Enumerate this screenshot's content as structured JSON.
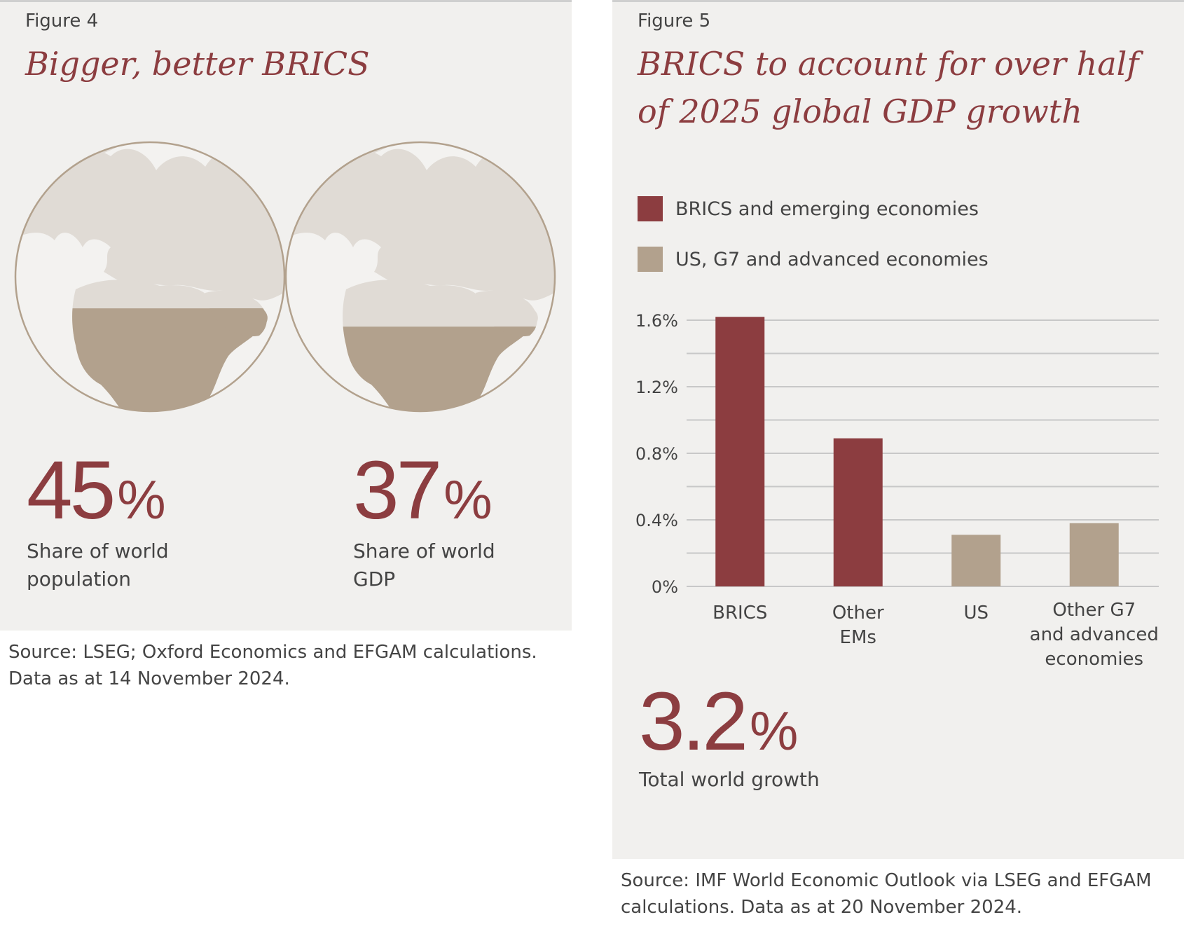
{
  "figure4": {
    "label": "Figure 4",
    "title": "Bigger, better BRICS",
    "stats": [
      {
        "value": "45",
        "unit": "%",
        "label_line1": "Share of world",
        "label_line2": "population",
        "share": 0.45
      },
      {
        "value": "37",
        "unit": "%",
        "label_line1": "Share of world",
        "label_line2": "GDP",
        "share": 0.37
      }
    ],
    "source_line1": "Source: LSEG; Oxford Economics and EFGAM calculations.",
    "source_line2": "Data as at 14 November 2024.",
    "colors": {
      "land_light": "#e0dbd5",
      "land_dark": "#b2a18d",
      "ocean": "#f3f2f0",
      "outline": "#b2a18d"
    }
  },
  "figure5": {
    "label": "Figure 5",
    "title_line1": "BRICS to account for over half",
    "title_line2": "of 2025 global GDP growth",
    "legend": [
      {
        "label": "BRICS and emerging economies",
        "color": "#8c3d40"
      },
      {
        "label": "US, G7 and advanced economies",
        "color": "#b2a18d"
      }
    ],
    "total_value": "3.2",
    "total_unit": "%",
    "total_label": "Total world growth",
    "source_line1": "Source: IMF World Economic Outlook via LSEG and EFGAM",
    "source_line2": "calculations. Data as at 20 November 2024."
  },
  "chart_data": {
    "type": "bar",
    "title": "BRICS to account for over half of 2025 global GDP growth",
    "categories": [
      [
        "BRICS"
      ],
      [
        "Other",
        "EMs"
      ],
      [
        "US"
      ],
      [
        "Other G7",
        "and advanced",
        "economies"
      ]
    ],
    "values": [
      1.62,
      0.89,
      0.31,
      0.38
    ],
    "bar_colors": [
      "#8c3d40",
      "#8c3d40",
      "#b2a18d",
      "#b2a18d"
    ],
    "yticks": [
      "0%",
      "0.4%",
      "0.8%",
      "1.2%",
      "1.6%"
    ],
    "ytick_values": [
      0,
      0.4,
      0.8,
      1.2,
      1.6
    ],
    "ylim": [
      0,
      1.6
    ],
    "grid": true,
    "xlabel": "",
    "ylabel": "",
    "grid_color": "#c8c8c8"
  }
}
